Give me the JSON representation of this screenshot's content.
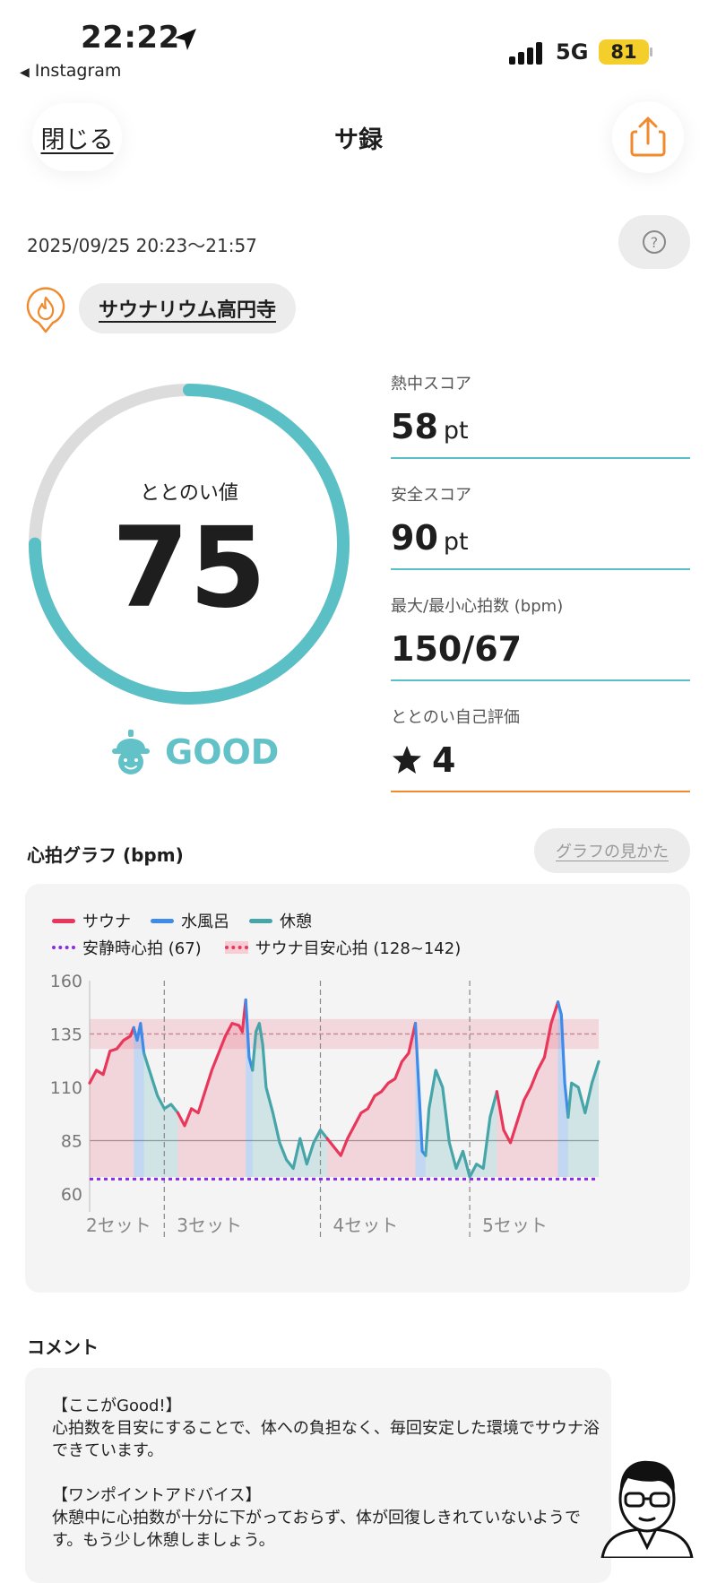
{
  "status_bar": {
    "time": "22:22",
    "back_app": "Instagram",
    "network": "5G",
    "battery": "81"
  },
  "header": {
    "close_label": "閉じる",
    "title": "サ録"
  },
  "session": {
    "datetime": "2025/09/25 20:23〜21:57",
    "facility": "サウナリウム高円寺"
  },
  "totonoi": {
    "label": "ととのい値",
    "value": "75",
    "max": 100,
    "rating": "GOOD"
  },
  "stats": [
    {
      "label": "熱中スコア",
      "value": "58",
      "unit": "pt"
    },
    {
      "label": "安全スコア",
      "value": "90",
      "unit": "pt"
    },
    {
      "label": "最大/最小心拍数 (bpm)",
      "value": "150/67",
      "unit": ""
    },
    {
      "label": "ととのい自己評価",
      "value": "4",
      "unit": ""
    }
  ],
  "heart_graph": {
    "title": "心拍グラフ (bpm)",
    "help_label": "グラフの見かた"
  },
  "chart_data": {
    "type": "line",
    "y_ticks": [
      "160",
      "135",
      "110",
      "85",
      "60"
    ],
    "ylim": [
      60,
      160
    ],
    "legend": [
      {
        "name": "サウナ",
        "color": "#e8375a",
        "style": "line"
      },
      {
        "name": "水風呂",
        "color": "#3f8bea",
        "style": "line"
      },
      {
        "name": "休憩",
        "color": "#46a5a8",
        "style": "line"
      },
      {
        "name": "安静時心拍 (67)",
        "color": "#8a2be2",
        "style": "dotted"
      },
      {
        "name": "サウナ目安心拍 (128~142)",
        "color": "#e8375a",
        "style": "band"
      }
    ],
    "resting_hr": 67,
    "target_band": [
      128,
      142
    ],
    "set_labels": [
      {
        "label": "2セット"
      },
      {
        "label": "3セット"
      },
      {
        "label": "4セット"
      },
      {
        "label": "5セット"
      }
    ],
    "series": [
      {
        "phase": "sauna",
        "points": [
          [
            0,
            112
          ],
          [
            2,
            118
          ],
          [
            4,
            116
          ],
          [
            6,
            127
          ],
          [
            8,
            128
          ],
          [
            10,
            132
          ],
          [
            12,
            134
          ],
          [
            13,
            138
          ]
        ]
      },
      {
        "phase": "cold",
        "points": [
          [
            13,
            138
          ],
          [
            14,
            132
          ],
          [
            15,
            140
          ],
          [
            16,
            126
          ]
        ]
      },
      {
        "phase": "rest",
        "points": [
          [
            16,
            126
          ],
          [
            18,
            116
          ],
          [
            20,
            106
          ],
          [
            22,
            100
          ],
          [
            24,
            102
          ],
          [
            26,
            98
          ]
        ]
      },
      {
        "phase": "sauna",
        "points": [
          [
            26,
            98
          ],
          [
            28,
            92
          ],
          [
            30,
            100
          ],
          [
            32,
            98
          ],
          [
            34,
            108
          ],
          [
            36,
            118
          ],
          [
            38,
            126
          ],
          [
            40,
            134
          ],
          [
            42,
            140
          ],
          [
            44,
            139
          ],
          [
            45,
            136
          ],
          [
            46,
            151
          ]
        ]
      },
      {
        "phase": "cold",
        "points": [
          [
            46,
            151
          ],
          [
            47,
            124
          ],
          [
            48,
            118
          ]
        ]
      },
      {
        "phase": "rest",
        "points": [
          [
            48,
            118
          ],
          [
            49,
            136
          ],
          [
            50,
            140
          ],
          [
            51,
            130
          ],
          [
            52,
            110
          ],
          [
            54,
            98
          ],
          [
            56,
            84
          ],
          [
            58,
            76
          ],
          [
            60,
            72
          ],
          [
            62,
            86
          ],
          [
            64,
            74
          ],
          [
            66,
            84
          ],
          [
            68,
            90
          ],
          [
            70,
            86
          ]
        ]
      },
      {
        "phase": "sauna",
        "points": [
          [
            70,
            86
          ],
          [
            72,
            82
          ],
          [
            74,
            78
          ],
          [
            76,
            86
          ],
          [
            78,
            92
          ],
          [
            80,
            98
          ],
          [
            82,
            100
          ],
          [
            84,
            106
          ],
          [
            86,
            108
          ],
          [
            88,
            112
          ],
          [
            90,
            114
          ],
          [
            92,
            122
          ],
          [
            94,
            126
          ],
          [
            96,
            140
          ]
        ]
      },
      {
        "phase": "cold",
        "points": [
          [
            96,
            140
          ],
          [
            97,
            110
          ],
          [
            98,
            80
          ],
          [
            99,
            78
          ]
        ]
      },
      {
        "phase": "rest",
        "points": [
          [
            99,
            78
          ],
          [
            100,
            100
          ],
          [
            102,
            118
          ],
          [
            104,
            110
          ],
          [
            106,
            84
          ],
          [
            108,
            72
          ],
          [
            110,
            80
          ],
          [
            112,
            68
          ],
          [
            114,
            74
          ],
          [
            116,
            72
          ],
          [
            118,
            96
          ],
          [
            120,
            108
          ]
        ]
      },
      {
        "phase": "sauna",
        "points": [
          [
            120,
            108
          ],
          [
            122,
            90
          ],
          [
            124,
            84
          ],
          [
            126,
            94
          ],
          [
            128,
            104
          ],
          [
            130,
            110
          ],
          [
            132,
            118
          ],
          [
            134,
            124
          ],
          [
            136,
            140
          ],
          [
            138,
            150
          ]
        ]
      },
      {
        "phase": "cold",
        "points": [
          [
            138,
            150
          ],
          [
            139,
            144
          ],
          [
            140,
            112
          ],
          [
            141,
            96
          ]
        ]
      },
      {
        "phase": "rest",
        "points": [
          [
            141,
            96
          ],
          [
            142,
            112
          ],
          [
            144,
            110
          ],
          [
            146,
            98
          ],
          [
            148,
            112
          ],
          [
            150,
            122
          ]
        ]
      }
    ],
    "set_boundaries": [
      22,
      68,
      112
    ]
  },
  "comment": {
    "title": "コメント",
    "good_heading": "【ここがGood!】",
    "good_text": "心拍数を目安にすることで、体への負担なく、毎回安定した環境でサウナ浴できています。",
    "advice_heading": "【ワンポイントアドバイス】",
    "advice_text": "休憩中に心拍数が十分に下がっておらず、体が回復しきれていないようです。もう少し休憩しましょう。"
  },
  "colors": {
    "teal": "#5bbfc6",
    "orange": "#f08a2c",
    "battery": "#f4cf2c"
  },
  "icons": {
    "share": "share-icon",
    "help": "question-icon",
    "facility": "flame-pin-icon",
    "rating": "sauna-hat-face-icon",
    "star": "star-icon"
  }
}
